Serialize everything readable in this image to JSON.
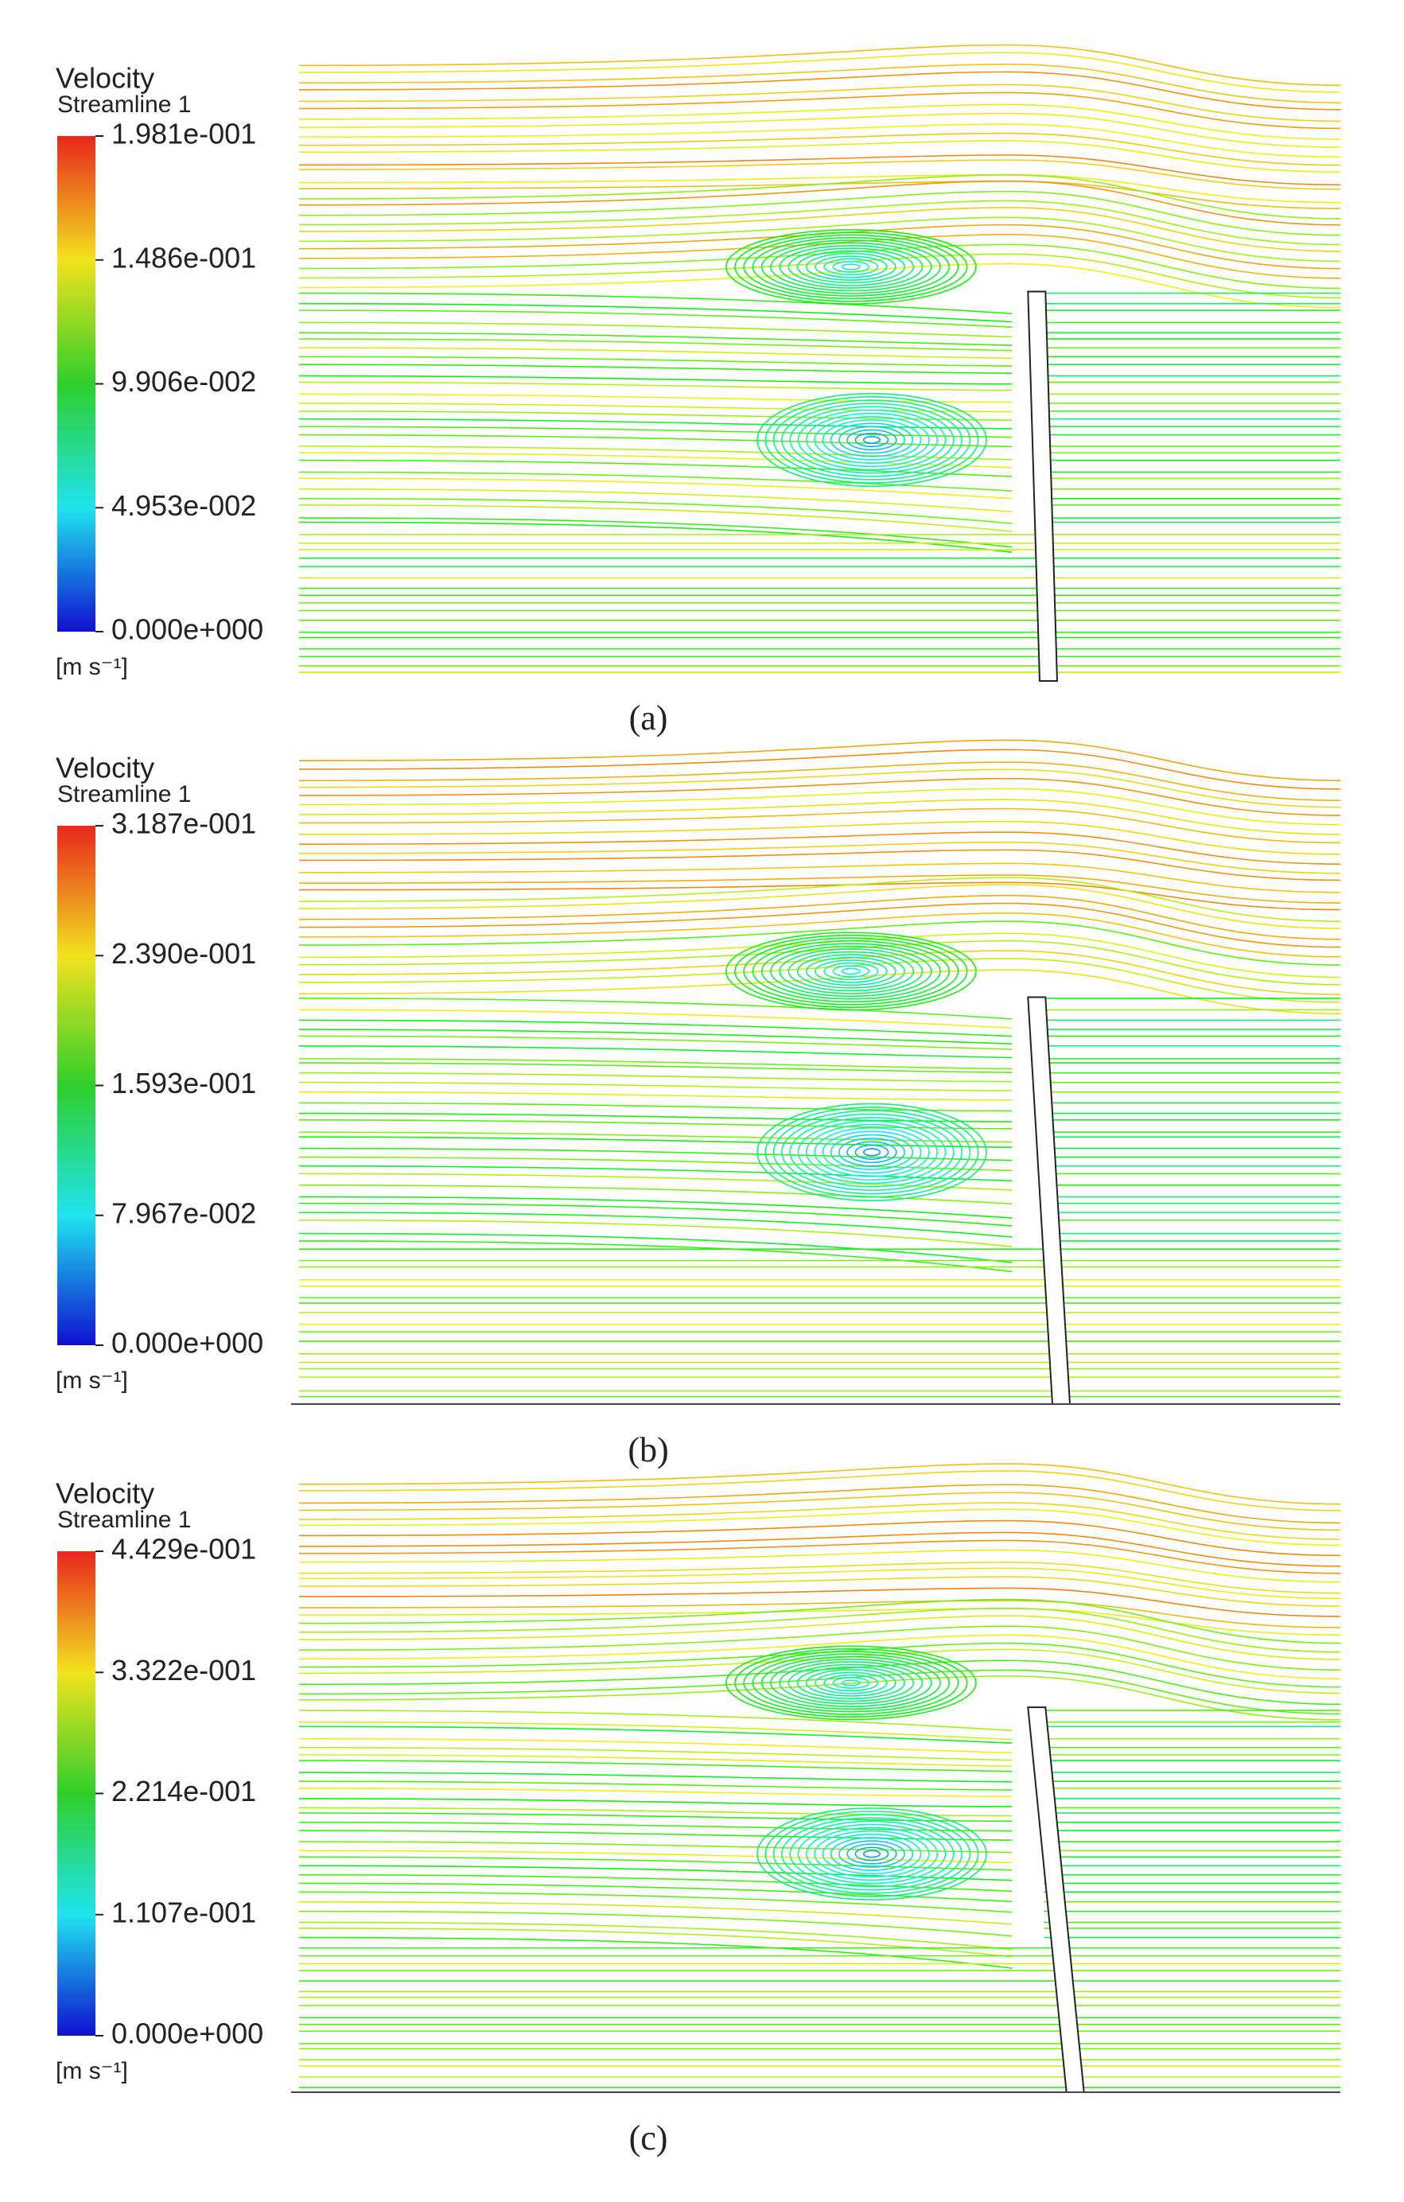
{
  "panels": [
    {
      "title": "Velocity",
      "subtitle": "Streamline 1",
      "legend_labels": [
        "1.981e-001",
        "1.486e-001",
        "9.906e-002",
        "4.953e-002",
        "0.000e+000"
      ],
      "unit": "[m s⁻¹]",
      "caption": "(a)"
    },
    {
      "title": "Velocity",
      "subtitle": "Streamline 1",
      "legend_labels": [
        "3.187e-001",
        "2.390e-001",
        "1.593e-001",
        "7.967e-002",
        "0.000e+000"
      ],
      "unit": "[m s⁻¹]",
      "caption": "(b)"
    },
    {
      "title": "Velocity",
      "subtitle": "Streamline 1",
      "legend_labels": [
        "4.429e-001",
        "3.322e-001",
        "2.214e-001",
        "1.107e-001",
        "0.000e+000"
      ],
      "unit": "[m s⁻¹]",
      "caption": "(c)"
    }
  ]
}
